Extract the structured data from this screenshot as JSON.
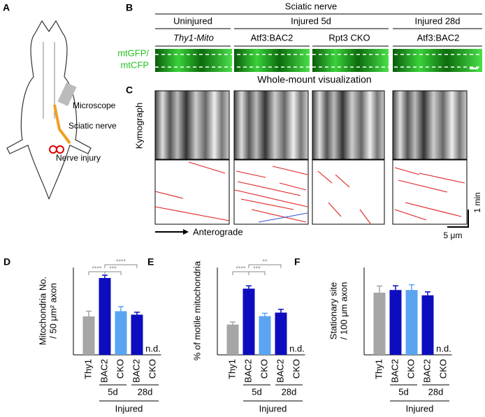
{
  "panel_a": {
    "letter": "A",
    "labels": [
      "Microscope",
      "Sciatic nerve",
      "Nerve injury"
    ]
  },
  "panel_b": {
    "letter": "B",
    "title": "Sciatic nerve",
    "conditions": [
      "Uninjured",
      "Injured 5d",
      "Injured 28d"
    ],
    "genotypes": [
      "Thy1-Mito",
      "Atf3:BAC2",
      "Rpt3 CKO",
      "Atf3:BAC2"
    ],
    "row_label": [
      "mtGFP/",
      "mtCFP"
    ],
    "caption": "Whole-mount visualization"
  },
  "panel_c": {
    "letter": "C",
    "row_label": "Kymograph",
    "direction": "Anterograde",
    "scale_time": "1 min",
    "scale_length": "5 μm"
  },
  "chart_data": [
    {
      "type": "bar",
      "letter": "D",
      "ylabel": [
        "Mitochondria No.",
        "/ 50 μm² axon"
      ],
      "categories": [
        "Thy1",
        "BAC2",
        "CKO",
        "BAC2",
        "CKO"
      ],
      "values": [
        11,
        22,
        12.5,
        11.5,
        null
      ],
      "errors": [
        1.5,
        0.8,
        1.3,
        0.7,
        null
      ],
      "colors": [
        "#a6a6a6",
        "#0d0dbf",
        "#5aa4f2",
        "#0d0dbf",
        "#0d0dbf"
      ],
      "ylim": [
        0,
        25
      ],
      "significance": [
        "****",
        "***",
        "****"
      ],
      "nd": "n.d.",
      "group_labels": [
        "5d",
        "28d"
      ],
      "group_title": "Injured"
    },
    {
      "type": "bar",
      "letter": "E",
      "ylabel": [
        "% of motile mitochondria"
      ],
      "categories": [
        "Thy1",
        "BAC2",
        "CKO",
        "BAC2",
        "CKO"
      ],
      "values": [
        21.5,
        47,
        27.5,
        30,
        null
      ],
      "errors": [
        1.8,
        2,
        2,
        2.3,
        null
      ],
      "colors": [
        "#a6a6a6",
        "#0d0dbf",
        "#5aa4f2",
        "#0d0dbf",
        "#0d0dbf"
      ],
      "ylim": [
        0,
        62
      ],
      "significance": [
        "****",
        "***",
        "**"
      ],
      "nd": "n.d.",
      "group_labels": [
        "5d",
        "28d"
      ],
      "group_title": "Injured"
    },
    {
      "type": "bar",
      "letter": "F",
      "ylabel": [
        "Stationary site",
        "/ 100 μm axon"
      ],
      "categories": [
        "Thy1",
        "BAC2",
        "CKO",
        "BAC2",
        "CKO"
      ],
      "values": [
        23.5,
        24.5,
        24.5,
        22.5,
        null
      ],
      "errors": [
        2.5,
        1.6,
        2,
        1.3,
        null
      ],
      "colors": [
        "#a6a6a6",
        "#0d0dbf",
        "#5aa4f2",
        "#0d0dbf",
        "#0d0dbf"
      ],
      "ylim": [
        0,
        33
      ],
      "nd": "n.d.",
      "group_labels": [
        "5d",
        "28d"
      ],
      "group_title": "Injured"
    }
  ]
}
